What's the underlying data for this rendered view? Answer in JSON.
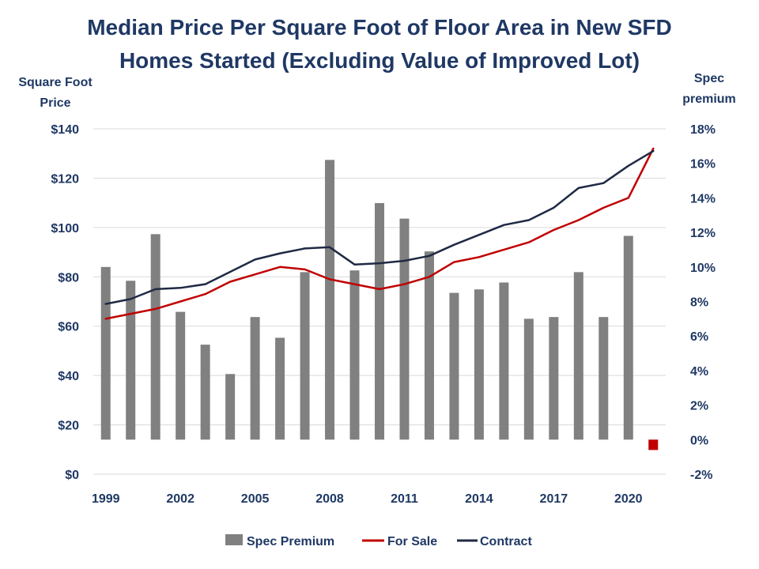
{
  "chart_data": {
    "type": "bar",
    "title_line1": "Median Price Per Square Foot of Floor Area in New SFD",
    "title_line2": "Homes Started (Excluding Value of Improved Lot)",
    "ylabel_left_line1": "Square Foot",
    "ylabel_left_line2": "Price",
    "ylabel_right_line1": "Spec",
    "ylabel_right_line2": "premium",
    "x": [
      1999,
      2000,
      2001,
      2002,
      2003,
      2004,
      2005,
      2006,
      2007,
      2008,
      2009,
      2010,
      2011,
      2012,
      2013,
      2014,
      2015,
      2016,
      2017,
      2018,
      2019,
      2020,
      2021
    ],
    "x_tick_labels": [
      "1999",
      "2002",
      "2005",
      "2008",
      "2011",
      "2014",
      "2017",
      "2020"
    ],
    "left_axis": {
      "ylim": [
        0,
        140
      ],
      "ticks": [
        "$0",
        "$20",
        "$40",
        "$60",
        "$80",
        "$100",
        "$120",
        "$140"
      ],
      "tick_values": [
        0,
        20,
        40,
        60,
        80,
        100,
        120,
        140
      ]
    },
    "right_axis": {
      "ylim": [
        -2,
        18
      ],
      "ticks": [
        "-2%",
        "0%",
        "2%",
        "4%",
        "6%",
        "8%",
        "10%",
        "12%",
        "14%",
        "16%",
        "18%"
      ],
      "tick_values": [
        -2,
        0,
        2,
        4,
        6,
        8,
        10,
        12,
        14,
        16,
        18
      ]
    },
    "grid": "horizontal",
    "legend_position": "bottom",
    "series": [
      {
        "name": "Spec Premium",
        "type": "bar",
        "axis": "right",
        "color": "#808080",
        "values": [
          10.0,
          9.2,
          11.9,
          7.4,
          5.5,
          3.8,
          7.1,
          5.9,
          9.7,
          16.2,
          9.8,
          13.7,
          12.8,
          10.9,
          8.5,
          8.7,
          9.1,
          7.0,
          7.1,
          9.7,
          7.1,
          11.8,
          -0.6
        ]
      },
      {
        "name": "For Sale",
        "type": "line",
        "axis": "left",
        "color": "#C00000",
        "values": [
          63,
          65,
          67,
          70,
          73,
          78,
          81,
          84,
          83,
          79,
          77,
          75,
          77,
          80,
          86,
          88,
          91,
          94,
          99,
          103,
          108,
          112,
          132
        ]
      },
      {
        "name": "Contract",
        "type": "line",
        "axis": "left",
        "color": "#1F2A44",
        "values": [
          69,
          71,
          75,
          75.5,
          77,
          82,
          87,
          89.5,
          91.5,
          92,
          85,
          85.5,
          86.5,
          88.5,
          93,
          97,
          101,
          103,
          108,
          116,
          118,
          125,
          131
        ]
      }
    ]
  }
}
